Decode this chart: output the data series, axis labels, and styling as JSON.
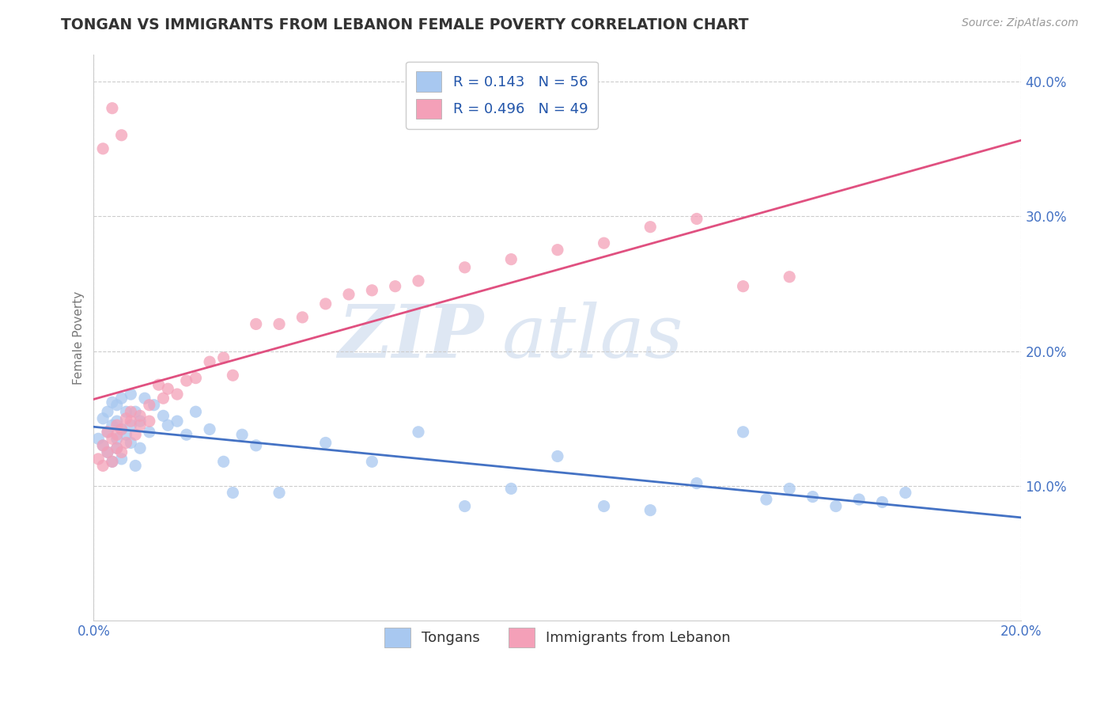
{
  "title": "TONGAN VS IMMIGRANTS FROM LEBANON FEMALE POVERTY CORRELATION CHART",
  "source": "Source: ZipAtlas.com",
  "xlabel": "",
  "ylabel": "Female Poverty",
  "series1_label": "Tongans",
  "series2_label": "Immigrants from Lebanon",
  "series1_R": "0.143",
  "series1_N": "56",
  "series2_R": "0.496",
  "series2_N": "49",
  "xlim": [
    0.0,
    0.2
  ],
  "ylim": [
    0.0,
    0.42
  ],
  "color1": "#A8C8F0",
  "color2": "#F4A0B8",
  "line1_color": "#4472C4",
  "line2_color": "#E05080",
  "background_color": "#FFFFFF",
  "watermark_zip": "ZIP",
  "watermark_atlas": "atlas",
  "tongans_x": [
    0.001,
    0.002,
    0.002,
    0.003,
    0.003,
    0.003,
    0.004,
    0.004,
    0.004,
    0.005,
    0.005,
    0.005,
    0.005,
    0.006,
    0.006,
    0.006,
    0.007,
    0.007,
    0.008,
    0.008,
    0.008,
    0.009,
    0.009,
    0.01,
    0.01,
    0.011,
    0.012,
    0.013,
    0.015,
    0.016,
    0.018,
    0.02,
    0.022,
    0.025,
    0.028,
    0.03,
    0.032,
    0.035,
    0.04,
    0.05,
    0.06,
    0.07,
    0.08,
    0.09,
    0.1,
    0.11,
    0.12,
    0.13,
    0.14,
    0.145,
    0.15,
    0.155,
    0.16,
    0.165,
    0.17,
    0.175
  ],
  "tongans_y": [
    0.135,
    0.15,
    0.13,
    0.14,
    0.125,
    0.155,
    0.145,
    0.162,
    0.118,
    0.16,
    0.135,
    0.128,
    0.148,
    0.165,
    0.142,
    0.12,
    0.138,
    0.155,
    0.168,
    0.132,
    0.145,
    0.115,
    0.155,
    0.128,
    0.148,
    0.165,
    0.14,
    0.16,
    0.152,
    0.145,
    0.148,
    0.138,
    0.155,
    0.142,
    0.118,
    0.095,
    0.138,
    0.13,
    0.095,
    0.132,
    0.118,
    0.14,
    0.085,
    0.098,
    0.122,
    0.085,
    0.082,
    0.102,
    0.14,
    0.09,
    0.098,
    0.092,
    0.085,
    0.09,
    0.088,
    0.095
  ],
  "lebanon_x": [
    0.001,
    0.002,
    0.002,
    0.003,
    0.003,
    0.004,
    0.004,
    0.005,
    0.005,
    0.005,
    0.006,
    0.006,
    0.007,
    0.007,
    0.008,
    0.008,
    0.009,
    0.01,
    0.01,
    0.012,
    0.012,
    0.014,
    0.015,
    0.016,
    0.018,
    0.02,
    0.022,
    0.025,
    0.028,
    0.03,
    0.035,
    0.04,
    0.045,
    0.05,
    0.055,
    0.06,
    0.065,
    0.07,
    0.08,
    0.09,
    0.1,
    0.11,
    0.12,
    0.13,
    0.14,
    0.15,
    0.002,
    0.004,
    0.006
  ],
  "lebanon_y": [
    0.12,
    0.115,
    0.13,
    0.125,
    0.14,
    0.135,
    0.118,
    0.145,
    0.128,
    0.138,
    0.142,
    0.125,
    0.15,
    0.132,
    0.148,
    0.155,
    0.138,
    0.152,
    0.145,
    0.16,
    0.148,
    0.175,
    0.165,
    0.172,
    0.168,
    0.178,
    0.18,
    0.192,
    0.195,
    0.182,
    0.22,
    0.22,
    0.225,
    0.235,
    0.242,
    0.245,
    0.248,
    0.252,
    0.262,
    0.268,
    0.275,
    0.28,
    0.292,
    0.298,
    0.248,
    0.255,
    0.35,
    0.38,
    0.36
  ]
}
